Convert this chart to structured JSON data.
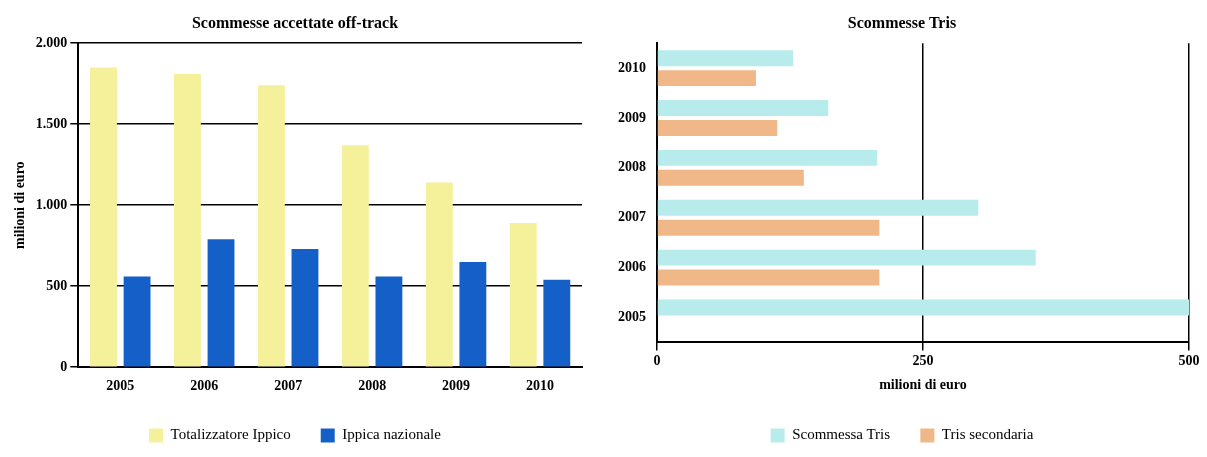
{
  "chart_data": [
    {
      "type": "bar",
      "title": "Scommesse accettate off-track",
      "ylabel": "milioni di euro",
      "categories": [
        "2005",
        "2006",
        "2007",
        "2008",
        "2009",
        "2010"
      ],
      "series": [
        {
          "name": "Totalizzatore Ippico",
          "color": "#f5f09a",
          "values": [
            1850,
            1810,
            1740,
            1370,
            1140,
            890
          ]
        },
        {
          "name": "Ippica nazionale",
          "color": "#1560c8",
          "values": [
            560,
            790,
            730,
            560,
            650,
            540
          ]
        }
      ],
      "ylim": [
        0,
        2000
      ],
      "yticks": [
        0,
        {
          "value": 500,
          "label": "500"
        },
        {
          "value": 1000,
          "label": "1.000"
        },
        {
          "value": 1500,
          "label": "1.500"
        },
        {
          "value": 2000,
          "label": "2.000"
        }
      ],
      "grid": "y",
      "legend": "bottom"
    },
    {
      "type": "bar",
      "orientation": "horizontal",
      "title": "Scommesse Tris",
      "xlabel": "milioni di euro",
      "categories": [
        "2010",
        "2009",
        "2008",
        "2007",
        "2006",
        "2005"
      ],
      "series": [
        {
          "name": "Scommessa Tris",
          "color": "#b8ecec",
          "values": [
            128,
            161,
            207,
            302,
            356,
            500
          ]
        },
        {
          "name": "Tris secondaria",
          "color": "#f0b888",
          "values": [
            93,
            113,
            138,
            209,
            209,
            null
          ]
        }
      ],
      "xlim": [
        0,
        500
      ],
      "xticks": [
        0,
        250,
        500
      ],
      "grid": "x",
      "legend": "bottom"
    }
  ]
}
